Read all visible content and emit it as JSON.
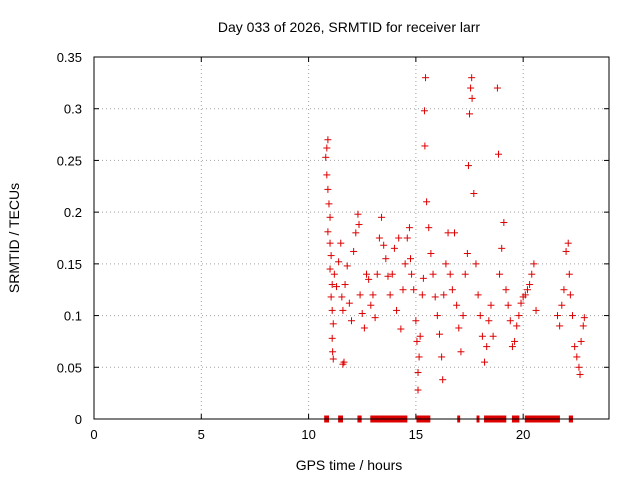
{
  "chart_data": {
    "type": "scatter",
    "title": "Day 033 of 2026, SRMTID for receiver larr",
    "xlabel": "GPS time / hours",
    "ylabel": "SRMTID / TECUs",
    "xlim": [
      0,
      24
    ],
    "ylim": [
      0,
      0.35
    ],
    "x_ticks": [
      0,
      5,
      10,
      15,
      20
    ],
    "x_tick_labels": [
      "0",
      "5",
      "10",
      "15",
      "20"
    ],
    "y_ticks": [
      0,
      0.05,
      0.1,
      0.15,
      0.2,
      0.25,
      0.3,
      0.35
    ],
    "y_tick_labels": [
      "0",
      "0.05",
      "0.1",
      "0.15",
      "0.2",
      "0.25",
      "0.3",
      "0.35"
    ],
    "grid": true,
    "marker": "+",
    "marker_color": "#dd0000",
    "series": [
      {
        "points": [
          [
            10.8,
            0.253
          ],
          [
            10.85,
            0.262
          ],
          [
            10.9,
            0.27
          ],
          [
            10.85,
            0.236
          ],
          [
            10.9,
            0.222
          ],
          [
            10.95,
            0.208
          ],
          [
            11.0,
            0.195
          ],
          [
            10.9,
            0.181
          ],
          [
            11.0,
            0.17
          ],
          [
            11.05,
            0.158
          ],
          [
            11.0,
            0.145
          ],
          [
            11.1,
            0.13
          ],
          [
            11.05,
            0.118
          ],
          [
            11.1,
            0.105
          ],
          [
            11.15,
            0.092
          ],
          [
            11.1,
            0.078
          ],
          [
            11.12,
            0.065
          ],
          [
            11.15,
            0.058
          ],
          [
            11.2,
            0.14
          ],
          [
            11.3,
            0.128
          ],
          [
            11.4,
            0.152
          ],
          [
            11.5,
            0.17
          ],
          [
            11.55,
            0.118
          ],
          [
            11.6,
            0.105
          ],
          [
            11.65,
            0.055
          ],
          [
            11.6,
            0.053
          ],
          [
            11.7,
            0.13
          ],
          [
            11.8,
            0.148
          ],
          [
            11.9,
            0.112
          ],
          [
            12.0,
            0.095
          ],
          [
            12.1,
            0.162
          ],
          [
            12.2,
            0.18
          ],
          [
            12.3,
            0.198
          ],
          [
            12.35,
            0.188
          ],
          [
            12.4,
            0.12
          ],
          [
            12.5,
            0.102
          ],
          [
            12.6,
            0.088
          ],
          [
            12.7,
            0.14
          ],
          [
            12.8,
            0.135
          ],
          [
            12.9,
            0.11
          ],
          [
            13.0,
            0.12
          ],
          [
            13.1,
            0.098
          ],
          [
            13.2,
            0.14
          ],
          [
            13.3,
            0.175
          ],
          [
            13.4,
            0.195
          ],
          [
            13.5,
            0.168
          ],
          [
            13.6,
            0.155
          ],
          [
            13.7,
            0.138
          ],
          [
            13.8,
            0.12
          ],
          [
            13.9,
            0.14
          ],
          [
            14.0,
            0.165
          ],
          [
            14.1,
            0.105
          ],
          [
            14.2,
            0.175
          ],
          [
            14.3,
            0.087
          ],
          [
            14.4,
            0.125
          ],
          [
            14.5,
            0.15
          ],
          [
            14.6,
            0.175
          ],
          [
            14.7,
            0.185
          ],
          [
            14.75,
            0.155
          ],
          [
            14.8,
            0.14
          ],
          [
            14.9,
            0.125
          ],
          [
            15.0,
            0.095
          ],
          [
            15.05,
            0.075
          ],
          [
            15.1,
            0.045
          ],
          [
            15.1,
            0.028
          ],
          [
            15.15,
            0.06
          ],
          [
            15.2,
            0.08
          ],
          [
            15.3,
            0.12
          ],
          [
            15.35,
            0.136
          ],
          [
            15.4,
            0.298
          ],
          [
            15.45,
            0.33
          ],
          [
            15.42,
            0.264
          ],
          [
            15.5,
            0.21
          ],
          [
            15.6,
            0.185
          ],
          [
            15.7,
            0.16
          ],
          [
            15.8,
            0.14
          ],
          [
            15.9,
            0.118
          ],
          [
            16.0,
            0.1
          ],
          [
            16.1,
            0.082
          ],
          [
            16.2,
            0.06
          ],
          [
            16.25,
            0.038
          ],
          [
            16.3,
            0.12
          ],
          [
            16.4,
            0.15
          ],
          [
            16.5,
            0.18
          ],
          [
            16.6,
            0.14
          ],
          [
            16.7,
            0.125
          ],
          [
            16.8,
            0.18
          ],
          [
            16.9,
            0.11
          ],
          [
            17.0,
            0.088
          ],
          [
            17.1,
            0.065
          ],
          [
            17.2,
            0.1
          ],
          [
            17.3,
            0.14
          ],
          [
            17.4,
            0.16
          ],
          [
            17.45,
            0.245
          ],
          [
            17.5,
            0.295
          ],
          [
            17.55,
            0.32
          ],
          [
            17.6,
            0.33
          ],
          [
            17.62,
            0.31
          ],
          [
            17.7,
            0.218
          ],
          [
            17.8,
            0.15
          ],
          [
            17.9,
            0.12
          ],
          [
            18.0,
            0.1
          ],
          [
            18.1,
            0.08
          ],
          [
            18.2,
            0.055
          ],
          [
            18.3,
            0.07
          ],
          [
            18.4,
            0.095
          ],
          [
            18.5,
            0.11
          ],
          [
            18.6,
            0.08
          ],
          [
            18.8,
            0.32
          ],
          [
            18.85,
            0.256
          ],
          [
            18.9,
            0.14
          ],
          [
            19.0,
            0.165
          ],
          [
            19.1,
            0.19
          ],
          [
            19.2,
            0.125
          ],
          [
            19.3,
            0.11
          ],
          [
            19.4,
            0.095
          ],
          [
            19.5,
            0.07
          ],
          [
            19.6,
            0.075
          ],
          [
            19.7,
            0.09
          ],
          [
            19.8,
            0.1
          ],
          [
            19.9,
            0.112
          ],
          [
            20.0,
            0.118
          ],
          [
            20.1,
            0.12
          ],
          [
            20.2,
            0.125
          ],
          [
            20.3,
            0.13
          ],
          [
            20.4,
            0.14
          ],
          [
            20.5,
            0.15
          ],
          [
            20.6,
            0.105
          ],
          [
            21.6,
            0.1
          ],
          [
            21.7,
            0.09
          ],
          [
            21.8,
            0.11
          ],
          [
            21.9,
            0.125
          ],
          [
            22.0,
            0.162
          ],
          [
            22.1,
            0.17
          ],
          [
            22.15,
            0.14
          ],
          [
            22.2,
            0.12
          ],
          [
            22.3,
            0.1
          ],
          [
            22.4,
            0.07
          ],
          [
            22.5,
            0.06
          ],
          [
            22.6,
            0.05
          ],
          [
            22.65,
            0.043
          ],
          [
            22.7,
            0.075
          ],
          [
            22.8,
            0.09
          ],
          [
            22.85,
            0.098
          ]
        ]
      }
    ],
    "zero_line_segments": [
      [
        10.75,
        10.95
      ],
      [
        11.4,
        11.6
      ],
      [
        12.3,
        12.45
      ],
      [
        12.9,
        14.6
      ],
      [
        15.05,
        15.65
      ],
      [
        16.95,
        17.05
      ],
      [
        17.85,
        17.95
      ],
      [
        18.2,
        19.2
      ],
      [
        19.5,
        19.8
      ],
      [
        20.1,
        21.7
      ],
      [
        22.15,
        22.3
      ]
    ]
  }
}
